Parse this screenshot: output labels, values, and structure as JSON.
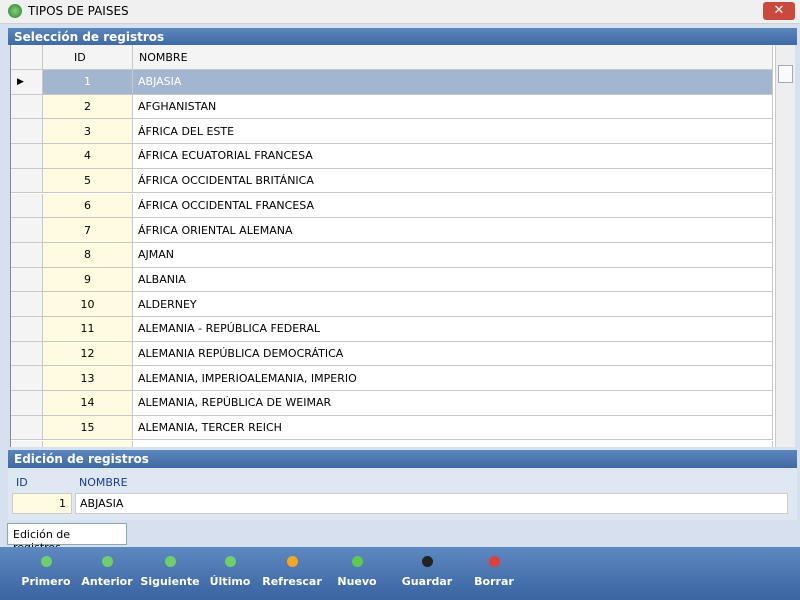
{
  "window": {
    "title": "TIPOS DE PAISES"
  },
  "selection_panel": {
    "title": "Selección de registros",
    "columns": [
      "ID",
      "NOMBRE"
    ],
    "rows": [
      [
        "1",
        "ABJASIA"
      ],
      [
        "2",
        "AFGHANISTAN"
      ],
      [
        "3",
        "ÁFRICA DEL ESTE"
      ],
      [
        "4",
        "ÁFRICA ECUATORIAL FRANCESA"
      ],
      [
        "5",
        "ÁFRICA OCCIDENTAL BRITÁNICA"
      ],
      [
        "6",
        "ÁFRICA OCCIDENTAL FRANCESA"
      ],
      [
        "7",
        "ÁFRICA ORIENTAL ALEMANA"
      ],
      [
        "8",
        "AJMAN"
      ],
      [
        "9",
        "ALBANIA"
      ],
      [
        "10",
        "ALDERNEY"
      ],
      [
        "11",
        "ALEMANIA - REPÚBLICA FEDERAL"
      ],
      [
        "12",
        "ALEMANIA REPÚBLICA DEMOCRÁTICA"
      ],
      [
        "13",
        "ALEMANIA, IMPERIOALEMANIA, IMPERIO"
      ],
      [
        "14",
        "ALEMANIA, REPÚBLICA DE WEIMAR"
      ],
      [
        "15",
        "ALEMANIA, TERCER REICH"
      ]
    ]
  },
  "edit_panel": {
    "title": "Edición de registros",
    "fields": [
      {
        "label": "ID",
        "value": "1"
      },
      {
        "label": "NOMBRE",
        "value": "ABJASIA"
      }
    ]
  },
  "tab": {
    "label": "Edición de registros"
  },
  "toolbar": {
    "buttons": [
      "Primero",
      "Anterior",
      "Siguiente",
      "Último",
      "Refrescar",
      "Nuevo",
      "Guardar",
      "Borrar"
    ]
  }
}
